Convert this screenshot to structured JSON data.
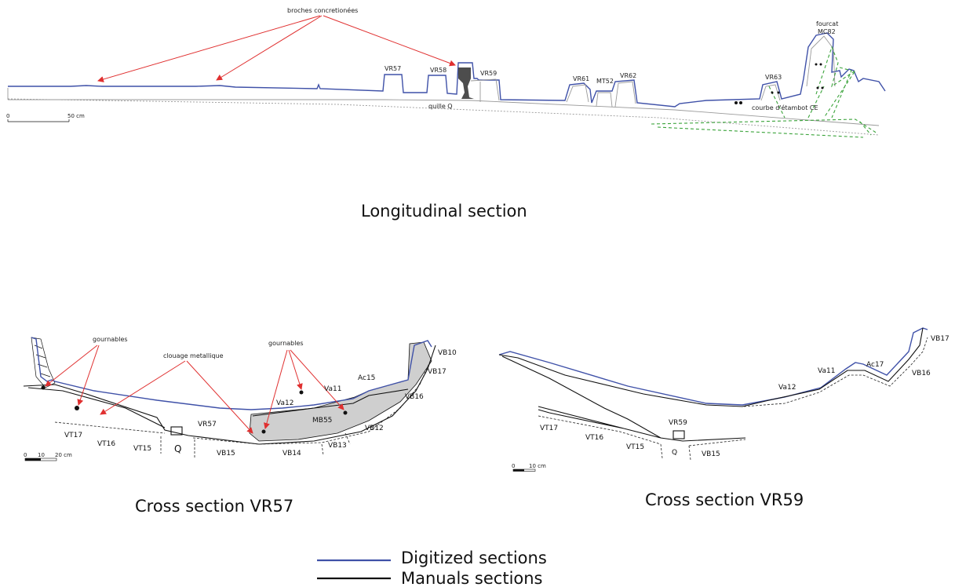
{
  "longitudinal": {
    "caption": "Longitudinal section",
    "annotation": "broches concretionées",
    "scale_zero": "0",
    "scale_label": "50 cm",
    "frame_labels": [
      "VR57",
      "VR58",
      "VR59",
      "VR61",
      "MT52",
      "VR62",
      "VR63"
    ],
    "quille_label": "quille Q",
    "fourcat_label_1": "fourcat",
    "fourcat_label_2": "MC82",
    "courbe_label": "courbe d'étambot CE"
  },
  "cross_vr57": {
    "caption": "Cross section VR57",
    "annotation_gournables_left": "gournables",
    "annotation_clouage": "clouage metallique",
    "annotation_gournables_right": "gournables",
    "labels": {
      "vt17": "VT17",
      "vt16": "VT16",
      "vt15": "VT15",
      "q": "Q",
      "vr57": "VR57",
      "vb15": "VB15",
      "vb14": "VB14",
      "vb13": "VB13",
      "vb12": "VB12",
      "mb55": "MB55",
      "va12": "Va12",
      "va11": "Va11",
      "ac15": "Ac15",
      "vb16": "VB16",
      "vb17": "VB17",
      "vb10": "VB10"
    },
    "scale": {
      "zero": "0",
      "ten": "10",
      "twenty": "20 cm"
    }
  },
  "cross_vr59": {
    "caption": "Cross section VR59",
    "labels": {
      "vt17": "VT17",
      "vt16": "VT16",
      "vt15": "VT15",
      "q": "Q",
      "vr59": "VR59",
      "vb15": "VB15",
      "va12": "Va12",
      "va11": "Va11",
      "ac17": "Ac17",
      "vb16": "VB16",
      "vb17": "VB17"
    },
    "scale": {
      "zero": "0",
      "ten": "10 cm"
    }
  },
  "legend": {
    "digitized": "Digitized sections",
    "manual": "Manuals sections",
    "digitized_color": "#3f51a8",
    "manual_color": "#111111"
  }
}
